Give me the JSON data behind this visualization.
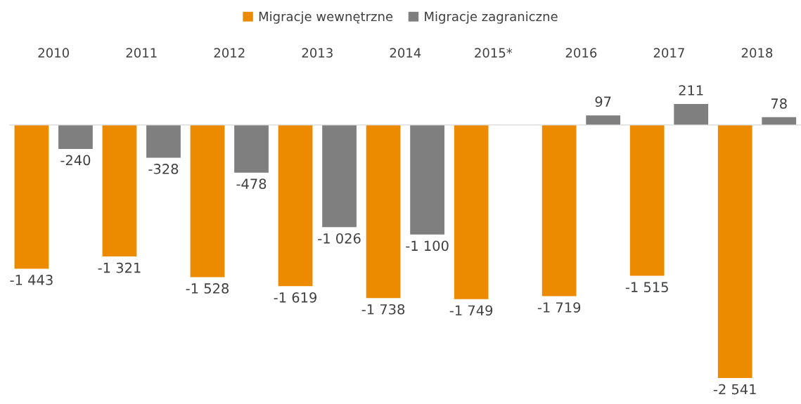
{
  "chart_data": {
    "type": "bar",
    "categories": [
      "2010",
      "2011",
      "2012",
      "2013",
      "2014",
      "2015*",
      "2016",
      "2017",
      "2018"
    ],
    "series": [
      {
        "name": "Migracje wewnętrzne",
        "color": "#ed8b00",
        "values": [
          -1443,
          -1321,
          -1528,
          -1619,
          -1738,
          -1749,
          -1719,
          -1515,
          -2541
        ],
        "value_labels": [
          "-1 443",
          "-1 321",
          "-1 528",
          "-1 619",
          "-1 738",
          "-1 749",
          "-1 719",
          "-1 515",
          "-2 541"
        ]
      },
      {
        "name": "Migracje zagraniczne",
        "color": "#7f7f7f",
        "values": [
          -240,
          -328,
          -478,
          -1026,
          -1100,
          null,
          97,
          211,
          78
        ],
        "value_labels": [
          "-240",
          "-328",
          "-478",
          "-1 026",
          "-1 100",
          null,
          "97",
          "211",
          "78"
        ]
      }
    ],
    "legend": "top",
    "grid": false
  }
}
